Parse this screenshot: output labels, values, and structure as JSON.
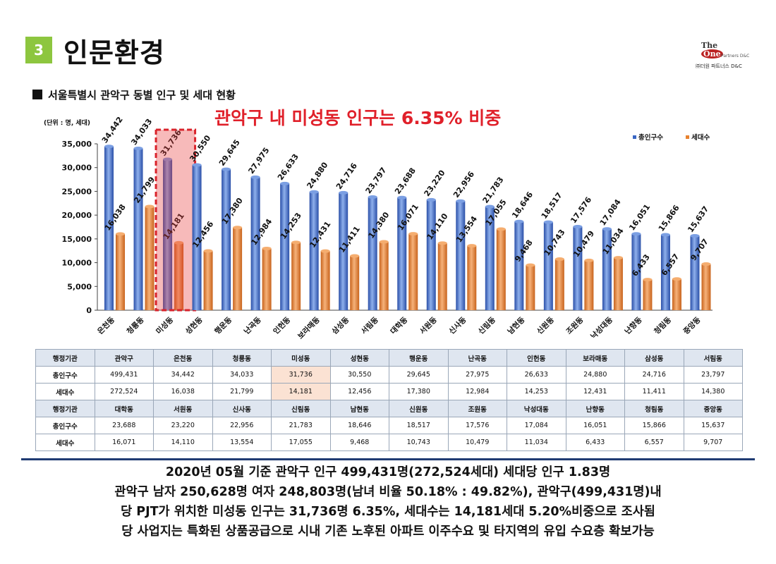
{
  "header": {
    "section_number": "3",
    "title": "인문환경",
    "logo_line1": "The",
    "logo_line2": "One",
    "logo_line3": "Partners D&C",
    "logo_line4": "㈜더원 파트너스 D&C"
  },
  "subheading": "서울특별시 관악구 동별 인구 및 세대 현황",
  "headline": "관악구 내 미성동 인구는 6.35% 비중",
  "unit_label": "(단위 : 명, 세대)",
  "colors": {
    "population": "#3a66c4",
    "households": "#e8822f",
    "highlight_box": "#d9232b",
    "headline": "#e0202a",
    "divider": "#1f3b73"
  },
  "chart_data": {
    "type": "bar",
    "categories": [
      "은천동",
      "청룡동",
      "미성동",
      "성현동",
      "행운동",
      "난곡동",
      "인헌동",
      "보라매동",
      "삼성동",
      "서림동",
      "대학동",
      "서원동",
      "신사동",
      "신림동",
      "남현동",
      "신원동",
      "조원동",
      "낙성대동",
      "난향동",
      "청림동",
      "중앙동"
    ],
    "series": [
      {
        "name": "총인구수",
        "values": [
          34442,
          34033,
          31736,
          30550,
          29645,
          27975,
          26633,
          24880,
          24716,
          23797,
          23688,
          23220,
          22956,
          21783,
          18646,
          18517,
          17576,
          17084,
          16051,
          15866,
          15637
        ]
      },
      {
        "name": "세대수",
        "values": [
          16038,
          21799,
          14181,
          12456,
          17380,
          12984,
          14253,
          12431,
          11411,
          14380,
          16071,
          14110,
          13554,
          17055,
          9468,
          10743,
          10479,
          11034,
          6433,
          6557,
          9707
        ]
      }
    ],
    "value_labels": {
      "population": [
        "34,442",
        "34,033",
        "31,736",
        "30,550",
        "29,645",
        "27,975",
        "26,633",
        "24,880",
        "24,716",
        "23,797",
        "23,688",
        "23,220",
        "22,956",
        "21,783",
        "18,646",
        "18,517",
        "17,576",
        "17,084",
        "16,051",
        "15,866",
        "15,637"
      ],
      "households": [
        "16,038",
        "21,799",
        "14,181",
        "12,456",
        "17,380",
        "12,984",
        "14,253",
        "12,431",
        "11,411",
        "14,380",
        "16,071",
        "14,110",
        "13,554",
        "17,055",
        "9,468",
        "10,743",
        "10,479",
        "11,034",
        "6,433",
        "6,557",
        "9,707"
      ]
    },
    "y_ticks": [
      "0",
      "5,000",
      "10,000",
      "15,000",
      "20,000",
      "25,000",
      "30,000",
      "35,000"
    ],
    "ylim": [
      0,
      35000
    ],
    "highlight_category": "미성동",
    "legend_position": "top-right",
    "grid": false
  },
  "table": {
    "rows_top": [
      [
        "행정기관",
        "관악구",
        "은천동",
        "청룡동",
        "미성동",
        "성현동",
        "행운동",
        "난곡동",
        "인헌동",
        "보라매동",
        "삼성동",
        "서림동"
      ],
      [
        "총인구수",
        "499,431",
        "34,442",
        "34,033",
        "31,736",
        "30,550",
        "29,645",
        "27,975",
        "26,633",
        "24,880",
        "24,716",
        "23,797"
      ],
      [
        "세대수",
        "272,524",
        "16,038",
        "21,799",
        "14,181",
        "12,456",
        "17,380",
        "12,984",
        "14,253",
        "12,431",
        "11,411",
        "14,380"
      ]
    ],
    "rows_bottom": [
      [
        "행정기관",
        "대학동",
        "서원동",
        "신사동",
        "신림동",
        "남현동",
        "신원동",
        "조원동",
        "낙성대동",
        "난향동",
        "청림동",
        "중앙동"
      ],
      [
        "총인구수",
        "23,688",
        "23,220",
        "22,956",
        "21,783",
        "18,646",
        "18,517",
        "17,576",
        "17,084",
        "16,051",
        "15,866",
        "15,637"
      ],
      [
        "세대수",
        "16,071",
        "14,110",
        "13,554",
        "17,055",
        "9,468",
        "10,743",
        "10,479",
        "11,034",
        "6,433",
        "6,557",
        "9,707"
      ]
    ]
  },
  "summary_lines": [
    "2020년 05월 기준 관악구 인구 499,431명(272,524세대) 세대당 인구 1.83명",
    "관악구 남자 250,628명 여자 248,803명(남녀 비율 50.18% : 49.82%), 관악구(499,431명)내",
    "당 PJT가 위치한 미성동 인구는 31,736명 6.35%, 세대수는 14,181세대 5.20%비중으로 조사됨",
    "당 사업지는 특화된 상품공급으로 시내 기존 노후된 아파트 이주수요 및 타지역의 유입 수요층 확보가능"
  ]
}
